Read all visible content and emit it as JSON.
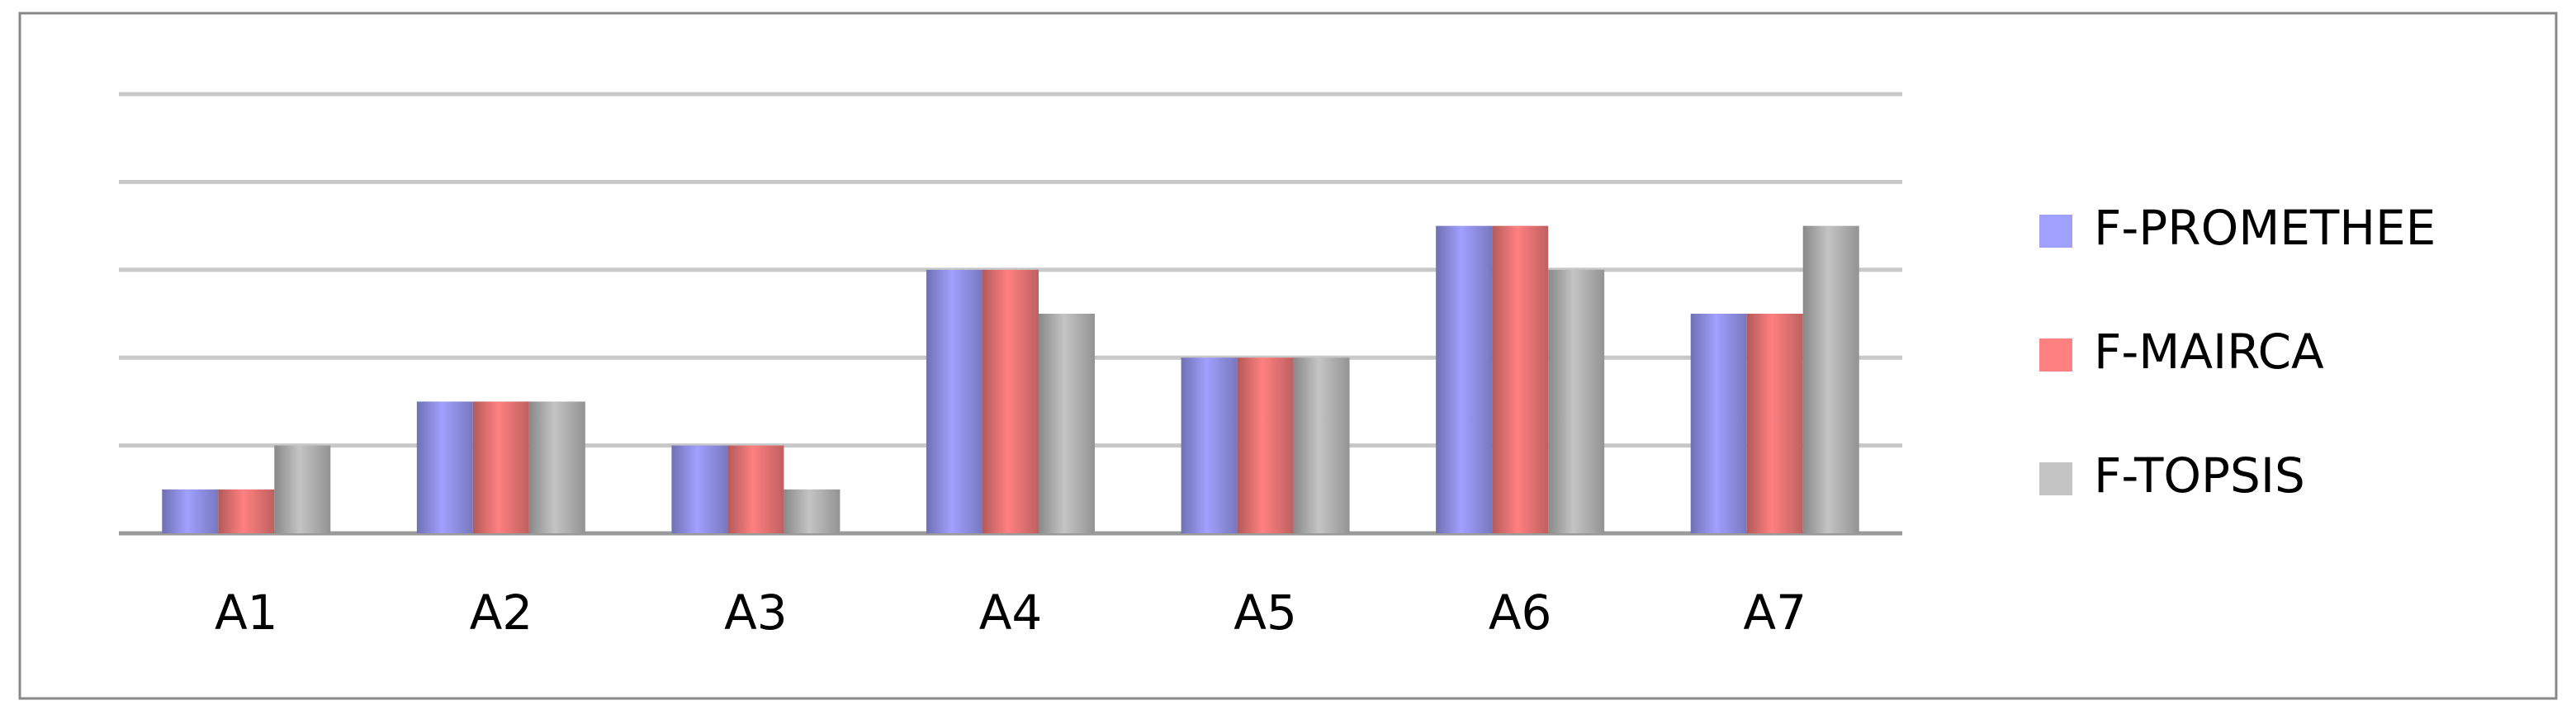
{
  "chart_data": {
    "type": "bar",
    "categories": [
      "A1",
      "A2",
      "A3",
      "A4",
      "A5",
      "A6",
      "A7"
    ],
    "series": [
      {
        "name": "F-PROMETHEE",
        "color": "#a0a0ff",
        "values": [
          1,
          3,
          2,
          6,
          4,
          7,
          5
        ]
      },
      {
        "name": "F-MAIRCA",
        "color": "#ff8080",
        "values": [
          1,
          3,
          2,
          6,
          4,
          7,
          5
        ]
      },
      {
        "name": "F-TOPSIS",
        "color": "#c4c4c4",
        "values": [
          2,
          3,
          1,
          5,
          4,
          6,
          7
        ]
      }
    ],
    "ylim": [
      0,
      10
    ],
    "yticks": [
      0,
      2,
      4,
      6,
      8,
      10
    ],
    "grid": true,
    "legend": "right"
  }
}
